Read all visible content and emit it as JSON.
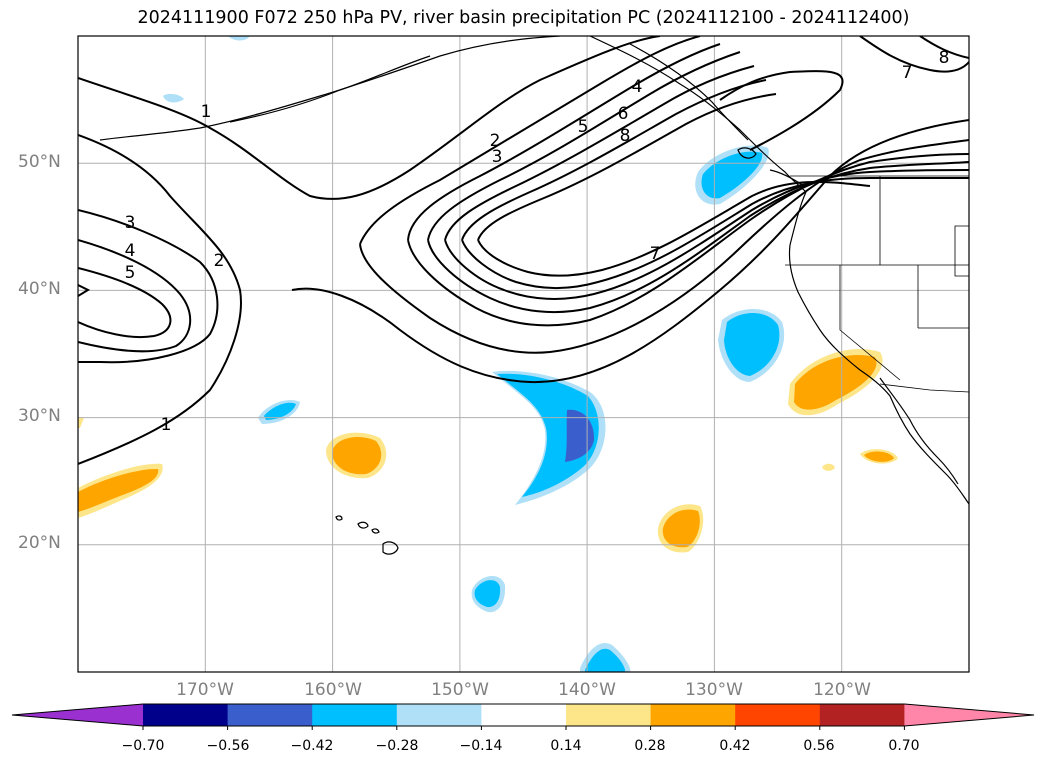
{
  "title": "2024111900 F072 250 hPa PV, river basin precipitation PC (2024112100 - 2024112400)",
  "map": {
    "projection": "PlateCarree",
    "lon_range": [
      -180,
      -110
    ],
    "lat_range": [
      10,
      60
    ],
    "grid": true,
    "lat_labels": [
      "50°N",
      "40°N",
      "30°N",
      "20°N"
    ],
    "lon_labels": [
      "170°W",
      "160°W",
      "150°W",
      "140°W",
      "130°W",
      "120°W"
    ],
    "pv_contour_labels": [
      "1",
      "2",
      "3",
      "4",
      "5",
      "2",
      "3",
      "4",
      "5",
      "6",
      "8",
      "7",
      "1",
      "7",
      "8"
    ],
    "pv_contour_color": "#000000"
  },
  "colorbar": {
    "extend": "both",
    "tick_labels": [
      "−0.70",
      "−0.56",
      "−0.42",
      "−0.28",
      "−0.14",
      "0.14",
      "0.28",
      "0.42",
      "0.56",
      "0.70"
    ],
    "colors": [
      "#9b30d0",
      "#00008b",
      "#3a5fcd",
      "#00bfff",
      "#afe0f8",
      "#ffffff",
      "#fde68a",
      "#ffa500",
      "#ff4500",
      "#b22222",
      "#ff86a8"
    ]
  }
}
